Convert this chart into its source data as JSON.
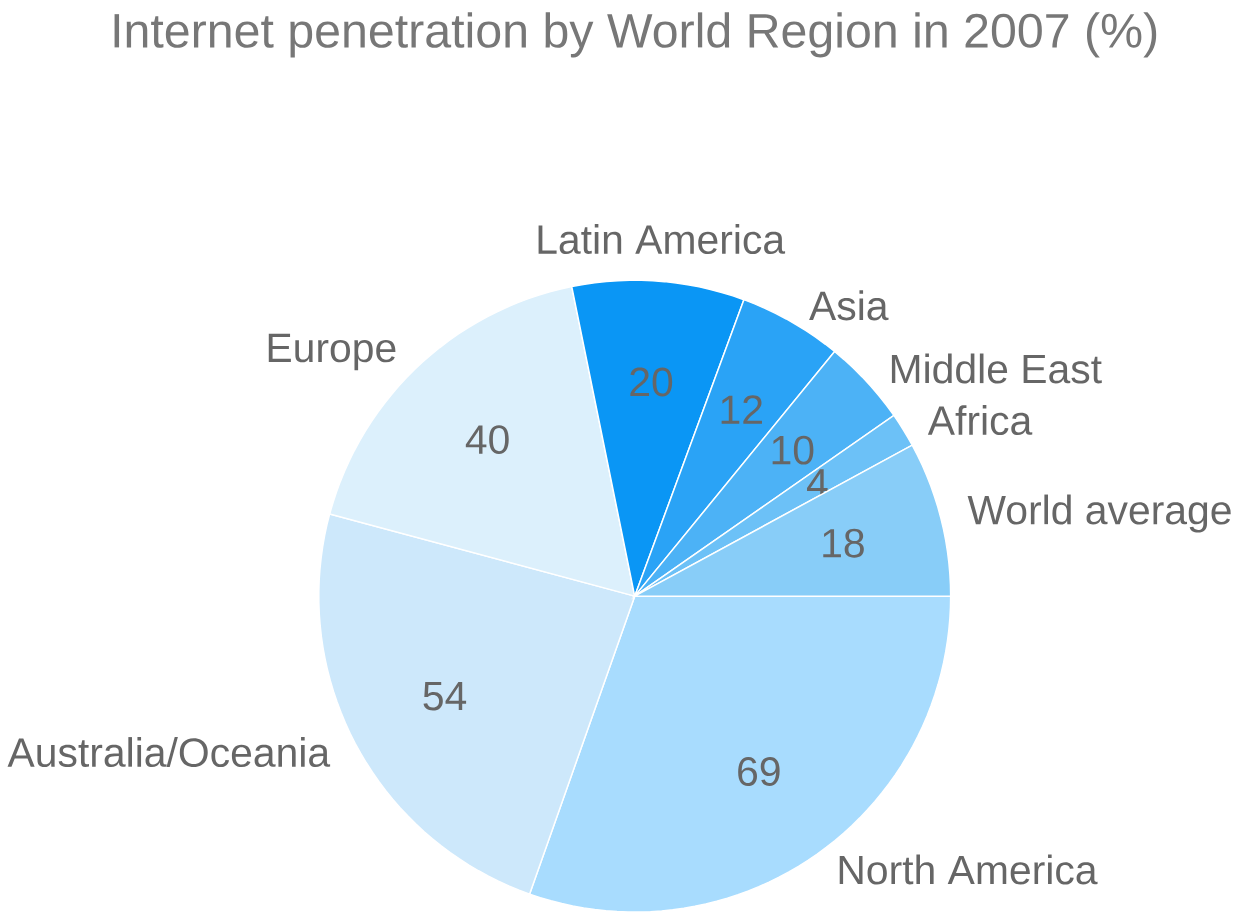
{
  "chart_data": {
    "type": "pie",
    "title": "Internet penetration by World Region in 2007 (%)",
    "categories": [
      "North America",
      "Australia/Oceania",
      "Europe",
      "Latin America",
      "Asia",
      "Middle East",
      "Africa",
      "World average"
    ],
    "values": [
      69,
      54,
      40,
      20,
      12,
      10,
      4,
      18
    ],
    "colors": [
      "#a8dcfe",
      "#cde8fb",
      "#dcf0fc",
      "#0a96f5",
      "#2aa3f6",
      "#4cb2f6",
      "#6cc1f7",
      "#88cdf8"
    ],
    "data_labels": true
  }
}
